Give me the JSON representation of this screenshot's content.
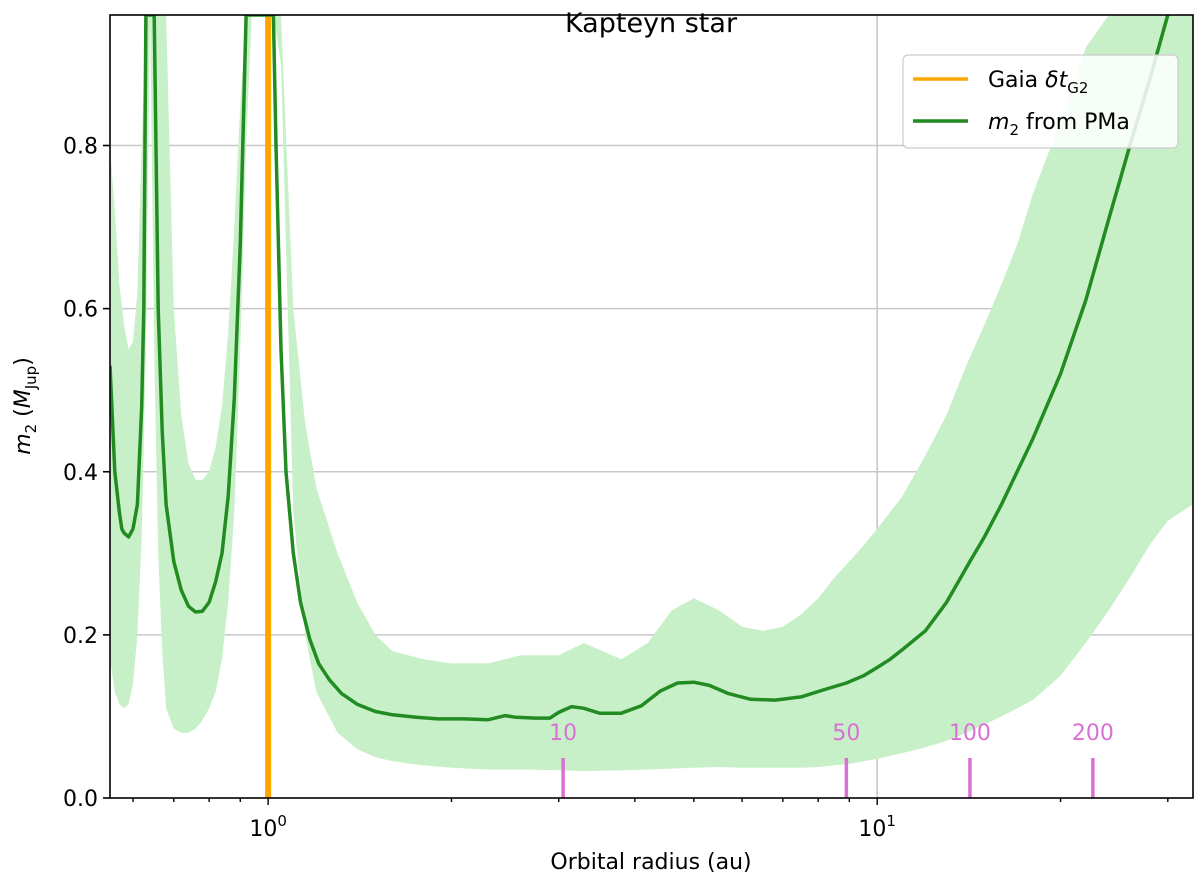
{
  "chart_data": {
    "type": "line",
    "title": "Kapteyn star",
    "xlabel": "Orbital radius (au)",
    "ylabel": "m₂ (M_Jup)",
    "xscale": "log",
    "xlim": [
      0.55,
      33
    ],
    "ylim": [
      0,
      0.96
    ],
    "grid": true,
    "legend_position": "top-right",
    "y_ticks": [
      {
        "value": 0.0,
        "label": "0.0"
      },
      {
        "value": 0.2,
        "label": "0.2"
      },
      {
        "value": 0.4,
        "label": "0.4"
      },
      {
        "value": 0.6,
        "label": "0.6"
      },
      {
        "value": 0.8,
        "label": "0.8"
      }
    ],
    "x_ticks": [
      {
        "value": 1,
        "base": "10",
        "exp": "0"
      },
      {
        "value": 10,
        "base": "10",
        "exp": "1"
      }
    ],
    "legend": [
      {
        "label": "Gaia δt",
        "sub": "G2",
        "color": "#ffa500",
        "italic_part": "δt"
      },
      {
        "label": " from PMa",
        "prefix": "m",
        "sub": "2",
        "color": "#228b22"
      }
    ],
    "gaia_line": {
      "x": 1.0,
      "color": "#ffa500"
    },
    "series_color": "#228b22",
    "band_color": "#c8f0c8",
    "period_markers": {
      "color": "#da70d6",
      "items": [
        {
          "label": "10",
          "x": 3.05
        },
        {
          "label": "50",
          "x": 8.9
        },
        {
          "label": "100",
          "x": 14.2
        },
        {
          "label": "200",
          "x": 22.6
        }
      ]
    },
    "series": [
      {
        "x": [
          0.55,
          0.56,
          0.57,
          0.575,
          0.58,
          0.59,
          0.6,
          0.61,
          0.62,
          0.625,
          0.63,
          0.64,
          0.65,
          0.66,
          0.67,
          0.68,
          0.7,
          0.72,
          0.74,
          0.76,
          0.78,
          0.8,
          0.82,
          0.84,
          0.86,
          0.88,
          0.9,
          0.92,
          0.94,
          0.95,
          0.96,
          1.02,
          1.03,
          1.05,
          1.07,
          1.1,
          1.13,
          1.17,
          1.21,
          1.26,
          1.32,
          1.4,
          1.5,
          1.6,
          1.75,
          1.9,
          2.1,
          2.3,
          2.45,
          2.55,
          2.75,
          2.9,
          3.0,
          3.15,
          3.3,
          3.5,
          3.8,
          4.1,
          4.4,
          4.7,
          5.0,
          5.3,
          5.7,
          6.2,
          6.8,
          7.5,
          8.2,
          8.9,
          9.5,
          10.0,
          10.5,
          11.0,
          12.0,
          13.0,
          14.2,
          15.0,
          16.0,
          18.0,
          20.0,
          22.0,
          24.0,
          26.0,
          28.0,
          30.0
        ],
        "values": [
          0.53,
          0.4,
          0.35,
          0.33,
          0.325,
          0.32,
          0.33,
          0.36,
          0.48,
          0.6,
          0.96,
          0.96,
          0.96,
          0.6,
          0.45,
          0.36,
          0.29,
          0.255,
          0.235,
          0.228,
          0.229,
          0.24,
          0.265,
          0.3,
          0.37,
          0.49,
          0.68,
          0.96,
          0.96,
          0.96,
          0.96,
          0.96,
          0.8,
          0.55,
          0.4,
          0.3,
          0.24,
          0.195,
          0.165,
          0.145,
          0.128,
          0.115,
          0.106,
          0.102,
          0.099,
          0.097,
          0.097,
          0.096,
          0.101,
          0.099,
          0.098,
          0.098,
          0.105,
          0.112,
          0.11,
          0.104,
          0.104,
          0.113,
          0.131,
          0.141,
          0.142,
          0.138,
          0.128,
          0.121,
          0.12,
          0.124,
          0.133,
          0.141,
          0.15,
          0.16,
          0.17,
          0.182,
          0.205,
          0.24,
          0.29,
          0.32,
          0.36,
          0.44,
          0.52,
          0.61,
          0.71,
          0.8,
          0.88,
          0.96
        ]
      }
    ],
    "band": {
      "x": [
        0.55,
        0.56,
        0.57,
        0.58,
        0.59,
        0.6,
        0.61,
        0.62,
        0.63,
        0.64,
        0.65,
        0.66,
        0.67,
        0.68,
        0.7,
        0.72,
        0.74,
        0.76,
        0.78,
        0.8,
        0.82,
        0.84,
        0.86,
        0.88,
        0.9,
        0.92,
        0.94,
        0.96,
        1.02,
        1.05,
        1.1,
        1.15,
        1.2,
        1.3,
        1.4,
        1.5,
        1.6,
        1.8,
        2.0,
        2.3,
        2.6,
        3.0,
        3.3,
        3.8,
        4.2,
        4.6,
        5.0,
        5.5,
        6.0,
        6.5,
        7.0,
        7.5,
        8.0,
        8.5,
        9.0,
        9.5,
        10.0,
        11.0,
        12.0,
        13.0,
        14.0,
        15.0,
        16.0,
        17.0,
        18.0,
        20.0,
        22.0,
        24.0,
        26.0,
        28.0,
        30.0,
        33.0
      ],
      "upper": [
        0.8,
        0.72,
        0.63,
        0.58,
        0.55,
        0.56,
        0.62,
        0.8,
        0.96,
        0.96,
        0.96,
        0.96,
        0.96,
        0.96,
        0.6,
        0.47,
        0.41,
        0.39,
        0.39,
        0.4,
        0.43,
        0.48,
        0.57,
        0.7,
        0.85,
        0.96,
        0.96,
        0.96,
        0.96,
        0.96,
        0.6,
        0.46,
        0.38,
        0.3,
        0.24,
        0.2,
        0.18,
        0.17,
        0.165,
        0.165,
        0.175,
        0.175,
        0.19,
        0.17,
        0.19,
        0.23,
        0.245,
        0.23,
        0.21,
        0.205,
        0.21,
        0.225,
        0.245,
        0.27,
        0.29,
        0.31,
        0.33,
        0.37,
        0.42,
        0.47,
        0.53,
        0.58,
        0.63,
        0.68,
        0.74,
        0.83,
        0.92,
        0.96,
        0.96,
        0.96,
        0.96,
        0.96
      ],
      "lower": [
        0.17,
        0.13,
        0.115,
        0.11,
        0.115,
        0.14,
        0.2,
        0.32,
        0.55,
        0.96,
        0.55,
        0.3,
        0.18,
        0.11,
        0.085,
        0.08,
        0.08,
        0.085,
        0.095,
        0.11,
        0.13,
        0.17,
        0.24,
        0.35,
        0.55,
        0.8,
        0.96,
        0.96,
        0.96,
        0.9,
        0.35,
        0.2,
        0.13,
        0.08,
        0.06,
        0.05,
        0.045,
        0.04,
        0.037,
        0.035,
        0.035,
        0.034,
        0.033,
        0.034,
        0.035,
        0.036,
        0.037,
        0.038,
        0.037,
        0.037,
        0.037,
        0.037,
        0.038,
        0.04,
        0.042,
        0.045,
        0.048,
        0.055,
        0.062,
        0.07,
        0.08,
        0.09,
        0.1,
        0.11,
        0.12,
        0.15,
        0.19,
        0.23,
        0.27,
        0.31,
        0.34,
        0.36
      ]
    }
  }
}
